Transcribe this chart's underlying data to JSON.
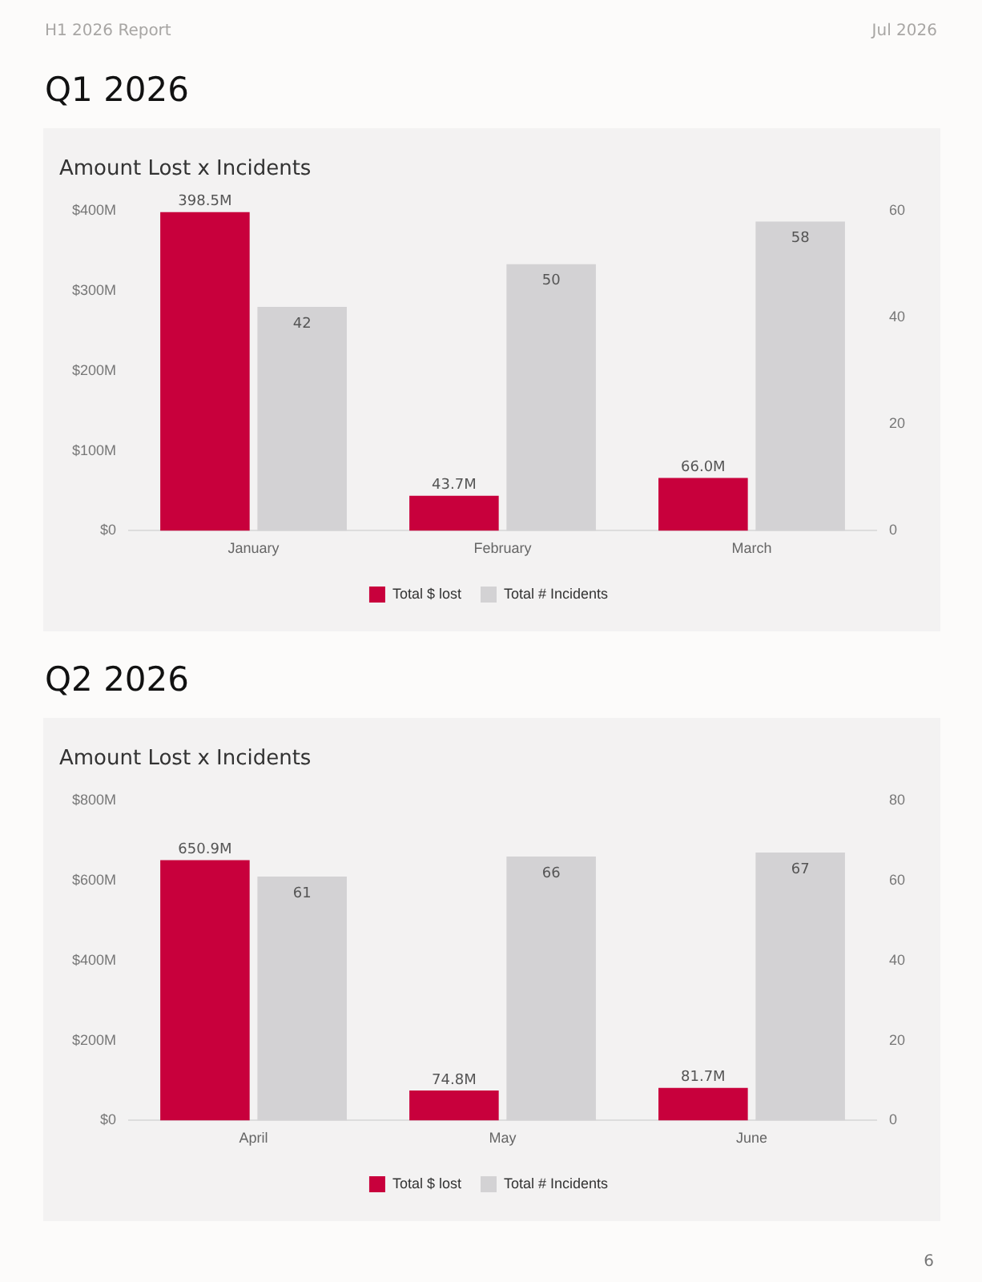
{
  "chart_data": [
    {
      "type": "bar",
      "title": "Q1 2026",
      "subtitle": "Amount Lost x Incidents",
      "categories": [
        "January",
        "February",
        "March"
      ],
      "series": [
        {
          "name": "Total $ lost",
          "color": "#c8003c",
          "values": [
            398.5,
            43.7,
            66.0
          ],
          "value_labels": [
            "398.5M",
            "43.7M",
            "66.0M"
          ]
        },
        {
          "name": "Total # Incidents",
          "color": "#d3d2d4",
          "axis": "y2",
          "values": [
            42,
            50,
            58
          ],
          "value_labels": [
            "42",
            "50",
            "58"
          ]
        }
      ],
      "ylim": [
        0,
        400
      ],
      "yticks": [
        {
          "value": 0,
          "label": "$0"
        },
        {
          "value": 100,
          "label": "$100M"
        },
        {
          "value": 200,
          "label": "$200M"
        },
        {
          "value": 300,
          "label": "$300M"
        },
        {
          "value": 400,
          "label": "$400M"
        }
      ],
      "y2lim": [
        0,
        60
      ],
      "y2ticks": [
        0,
        20,
        40,
        60
      ],
      "legend": "bottom",
      "annotations": [
        "H1 2026 Report",
        "Jul 2026"
      ]
    },
    {
      "type": "bar",
      "title": "Q2 2026",
      "subtitle": "Amount Lost x Incidents",
      "categories": [
        "April",
        "May",
        "June"
      ],
      "series": [
        {
          "name": "Total $ lost",
          "color": "#c8003c",
          "values": [
            650.9,
            74.8,
            81.7
          ],
          "value_labels": [
            "650.9M",
            "74.8M",
            "81.7M"
          ]
        },
        {
          "name": "Total # Incidents",
          "color": "#d3d2d4",
          "axis": "y2",
          "values": [
            61,
            66,
            67
          ],
          "value_labels": [
            "61",
            "66",
            "67"
          ]
        }
      ],
      "ylim": [
        0,
        800
      ],
      "yticks": [
        {
          "value": 0,
          "label": "$0"
        },
        {
          "value": 200,
          "label": "$200M"
        },
        {
          "value": 400,
          "label": "$400M"
        },
        {
          "value": 600,
          "label": "$600M"
        },
        {
          "value": 800,
          "label": "$800M"
        }
      ],
      "y2lim": [
        0,
        80
      ],
      "y2ticks": [
        0,
        20,
        40,
        60,
        80
      ],
      "legend": "bottom",
      "annotations": [
        "6"
      ]
    }
  ]
}
